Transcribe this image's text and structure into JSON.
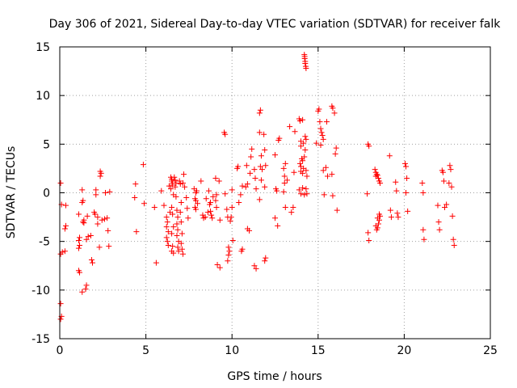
{
  "chart_data": {
    "type": "scatter",
    "title": "Day 306 of 2021, Sidereal Day-to-day VTEC variation (SDTVAR) for receiver falk",
    "xlabel": "GPS time / hours",
    "ylabel": "SDTVAR / TECUs",
    "xlim": [
      0,
      25
    ],
    "ylim": [
      -15,
      15
    ],
    "grid": true,
    "marker": "+",
    "marker_color": "#ff0000",
    "x_ticks": [
      0,
      5,
      10,
      15,
      20,
      25
    ],
    "x_tick_labels": [
      "0",
      "5",
      "10",
      "15",
      "20",
      "25"
    ],
    "y_ticks": [
      -15,
      -10,
      -5,
      0,
      5,
      10,
      15
    ],
    "y_tick_labels": [
      "-15",
      "-10",
      "-5",
      "0",
      "5",
      "10",
      "15"
    ],
    "series": [
      {
        "name": "SDTVAR",
        "points": [
          [
            0.05,
            1.0
          ],
          [
            0.1,
            -1.2
          ],
          [
            0.05,
            -6.3
          ],
          [
            0.15,
            -6.1
          ],
          [
            0.05,
            -11.4
          ],
          [
            0.1,
            -12.7
          ],
          [
            0.05,
            -13.0
          ],
          [
            0.35,
            -1.3
          ],
          [
            0.3,
            -3.7
          ],
          [
            0.35,
            -3.4
          ],
          [
            0.3,
            -6.0
          ],
          [
            1.1,
            -2.2
          ],
          [
            1.15,
            -4.6
          ],
          [
            1.1,
            -4.9
          ],
          [
            1.15,
            -5.4
          ],
          [
            1.1,
            -5.7
          ],
          [
            1.1,
            -8.0
          ],
          [
            1.15,
            -8.2
          ],
          [
            1.3,
            0.3
          ],
          [
            1.35,
            -0.8
          ],
          [
            1.3,
            -1.0
          ],
          [
            1.4,
            -2.8
          ],
          [
            1.35,
            -3.0
          ],
          [
            1.4,
            -3.1
          ],
          [
            1.3,
            -10.2
          ],
          [
            1.5,
            -9.9
          ],
          [
            1.55,
            -9.5
          ],
          [
            1.6,
            -2.4
          ],
          [
            1.65,
            -4.5
          ],
          [
            1.55,
            -4.8
          ],
          [
            1.8,
            -4.4
          ],
          [
            1.85,
            -6.9
          ],
          [
            1.9,
            -7.2
          ],
          [
            2.0,
            -2.0
          ],
          [
            2.05,
            -2.2
          ],
          [
            2.1,
            -0.2
          ],
          [
            2.1,
            0.3
          ],
          [
            2.2,
            -2.5
          ],
          [
            2.2,
            -3.2
          ],
          [
            2.3,
            -5.6
          ],
          [
            2.35,
            1.7
          ],
          [
            2.4,
            2.0
          ],
          [
            2.35,
            2.2
          ],
          [
            2.45,
            -2.8
          ],
          [
            2.6,
            -2.7
          ],
          [
            2.65,
            0.0
          ],
          [
            2.75,
            -2.6
          ],
          [
            2.8,
            -3.9
          ],
          [
            2.85,
            -5.5
          ],
          [
            2.9,
            0.1
          ],
          [
            4.35,
            -0.5
          ],
          [
            4.4,
            0.9
          ],
          [
            4.45,
            -4.0
          ],
          [
            4.85,
            2.9
          ],
          [
            4.9,
            -1.1
          ],
          [
            5.5,
            -1.5
          ],
          [
            5.6,
            -7.2
          ],
          [
            5.9,
            0.2
          ],
          [
            6.05,
            -1.3
          ],
          [
            6.2,
            -2.5
          ],
          [
            6.25,
            -3.0
          ],
          [
            6.2,
            -3.5
          ],
          [
            6.3,
            -4.0
          ],
          [
            6.2,
            -4.6
          ],
          [
            6.25,
            -5.0
          ],
          [
            6.3,
            -5.4
          ],
          [
            6.4,
            -2.0
          ],
          [
            6.35,
            0.7
          ],
          [
            6.45,
            0.4
          ],
          [
            6.5,
            1.4
          ],
          [
            6.55,
            1.0
          ],
          [
            6.45,
            1.6
          ],
          [
            6.5,
            1.2
          ],
          [
            6.55,
            0.8
          ],
          [
            6.6,
            -0.2
          ],
          [
            6.5,
            -1.5
          ],
          [
            6.55,
            -2.2
          ],
          [
            6.6,
            -3.5
          ],
          [
            6.5,
            -4.2
          ],
          [
            6.55,
            -5.5
          ],
          [
            6.5,
            -6.0
          ],
          [
            6.6,
            -6.2
          ],
          [
            6.65,
            1.6
          ],
          [
            6.7,
            1.3
          ],
          [
            6.75,
            1.0
          ],
          [
            6.7,
            0.6
          ],
          [
            6.75,
            -0.4
          ],
          [
            6.8,
            -1.8
          ],
          [
            6.85,
            -2.5
          ],
          [
            6.8,
            -3.2
          ],
          [
            6.85,
            -3.8
          ],
          [
            6.8,
            -4.4
          ],
          [
            6.9,
            -5.0
          ],
          [
            6.85,
            -5.6
          ],
          [
            6.9,
            -6.0
          ],
          [
            6.95,
            1.2
          ],
          [
            7.0,
            0.9
          ],
          [
            7.05,
            -1.0
          ],
          [
            7.0,
            -2.0
          ],
          [
            7.05,
            -3.0
          ],
          [
            7.1,
            -4.2
          ],
          [
            7.05,
            -5.2
          ],
          [
            7.1,
            -5.8
          ],
          [
            7.15,
            -6.3
          ],
          [
            7.15,
            1.0
          ],
          [
            7.2,
            1.9
          ],
          [
            7.25,
            0.6
          ],
          [
            7.35,
            -0.5
          ],
          [
            7.4,
            -1.6
          ],
          [
            7.45,
            -2.6
          ],
          [
            7.8,
            0.4
          ],
          [
            7.85,
            -0.6
          ],
          [
            7.9,
            0.0
          ],
          [
            7.9,
            -0.8
          ],
          [
            7.85,
            -1.5
          ],
          [
            7.9,
            -1.7
          ],
          [
            8.0,
            -1.1
          ],
          [
            7.95,
            0.2
          ],
          [
            8.2,
            1.2
          ],
          [
            8.3,
            -2.3
          ],
          [
            8.35,
            -2.6
          ],
          [
            8.45,
            -2.5
          ],
          [
            8.5,
            -0.6
          ],
          [
            8.6,
            -2.0
          ],
          [
            8.65,
            0.2
          ],
          [
            8.7,
            -1.2
          ],
          [
            8.75,
            -1.9
          ],
          [
            8.8,
            -2.3
          ],
          [
            8.85,
            -2.6
          ],
          [
            8.75,
            -1.0
          ],
          [
            8.9,
            -0.4
          ],
          [
            9.05,
            1.5
          ],
          [
            9.1,
            -0.2
          ],
          [
            9.05,
            -0.8
          ],
          [
            9.1,
            -1.5
          ],
          [
            9.15,
            -7.4
          ],
          [
            9.3,
            -7.7
          ],
          [
            9.25,
            1.2
          ],
          [
            9.3,
            -2.8
          ],
          [
            9.55,
            6.2
          ],
          [
            9.6,
            6.0
          ],
          [
            9.6,
            -0.1
          ],
          [
            9.7,
            -1.7
          ],
          [
            9.75,
            -2.5
          ],
          [
            9.8,
            -5.6
          ],
          [
            9.85,
            -6.0
          ],
          [
            9.8,
            -6.4
          ],
          [
            9.75,
            -7.0
          ],
          [
            9.9,
            -2.9
          ],
          [
            9.95,
            -2.5
          ],
          [
            10.0,
            -1.5
          ],
          [
            10.0,
            0.3
          ],
          [
            10.05,
            -4.9
          ],
          [
            10.3,
            2.5
          ],
          [
            10.35,
            2.7
          ],
          [
            10.4,
            -1.0
          ],
          [
            10.5,
            -0.2
          ],
          [
            10.6,
            0.7
          ],
          [
            10.55,
            -6.0
          ],
          [
            10.6,
            -5.8
          ],
          [
            10.8,
            0.6
          ],
          [
            10.85,
            2.8
          ],
          [
            10.9,
            0.9
          ],
          [
            10.9,
            -3.7
          ],
          [
            11.0,
            -3.9
          ],
          [
            11.05,
            2.0
          ],
          [
            11.1,
            3.7
          ],
          [
            11.15,
            4.5
          ],
          [
            11.3,
            2.4
          ],
          [
            11.35,
            1.5
          ],
          [
            11.4,
            0.4
          ],
          [
            11.3,
            -7.5
          ],
          [
            11.4,
            -7.8
          ],
          [
            11.6,
            8.2
          ],
          [
            11.65,
            8.5
          ],
          [
            11.6,
            6.2
          ],
          [
            11.7,
            3.8
          ],
          [
            11.65,
            2.7
          ],
          [
            11.7,
            1.3
          ],
          [
            11.6,
            -0.7
          ],
          [
            11.75,
            2.4
          ],
          [
            11.85,
            6.0
          ],
          [
            11.9,
            4.4
          ],
          [
            11.95,
            2.8
          ],
          [
            11.9,
            0.6
          ],
          [
            11.95,
            -6.7
          ],
          [
            11.9,
            -7.0
          ],
          [
            12.5,
            3.9
          ],
          [
            12.55,
            0.4
          ],
          [
            12.5,
            -2.6
          ],
          [
            12.6,
            0.2
          ],
          [
            12.65,
            -3.4
          ],
          [
            12.7,
            5.4
          ],
          [
            12.75,
            5.6
          ],
          [
            13.0,
            2.5
          ],
          [
            13.05,
            1.7
          ],
          [
            13.1,
            3.0
          ],
          [
            13.05,
            1.0
          ],
          [
            13.0,
            0.1
          ],
          [
            13.1,
            -1.5
          ],
          [
            13.2,
            1.3
          ],
          [
            13.35,
            6.8
          ],
          [
            13.45,
            -2.0
          ],
          [
            13.55,
            -1.5
          ],
          [
            13.6,
            2.1
          ],
          [
            13.65,
            6.3
          ],
          [
            13.9,
            7.6
          ],
          [
            13.95,
            7.4
          ],
          [
            14.0,
            5.3
          ],
          [
            14.0,
            4.8
          ],
          [
            13.95,
            3.0
          ],
          [
            14.0,
            2.7
          ],
          [
            14.05,
            3.5
          ],
          [
            14.0,
            2.2
          ],
          [
            13.9,
            0.3
          ],
          [
            14.0,
            -0.1
          ],
          [
            14.1,
            7.5
          ],
          [
            14.15,
            5.1
          ],
          [
            14.2,
            3.7
          ],
          [
            14.1,
            3.3
          ],
          [
            14.15,
            2.5
          ],
          [
            14.1,
            2.0
          ],
          [
            14.1,
            0.5
          ],
          [
            14.2,
            -0.2
          ],
          [
            14.2,
            14.2
          ],
          [
            14.22,
            14.0
          ],
          [
            14.22,
            13.8
          ],
          [
            14.25,
            13.5
          ],
          [
            14.25,
            13.3
          ],
          [
            14.28,
            13.0
          ],
          [
            14.3,
            12.8
          ],
          [
            14.25,
            5.8
          ],
          [
            14.3,
            5.5
          ],
          [
            14.25,
            4.4
          ],
          [
            14.3,
            2.3
          ],
          [
            14.35,
            1.7
          ],
          [
            14.3,
            0.4
          ],
          [
            14.35,
            -0.1
          ],
          [
            14.9,
            5.1
          ],
          [
            15.0,
            8.4
          ],
          [
            15.05,
            8.6
          ],
          [
            15.1,
            7.3
          ],
          [
            15.15,
            6.6
          ],
          [
            15.15,
            4.9
          ],
          [
            15.2,
            6.2
          ],
          [
            15.25,
            5.9
          ],
          [
            15.3,
            5.5
          ],
          [
            15.3,
            2.3
          ],
          [
            15.35,
            -0.2
          ],
          [
            15.45,
            2.6
          ],
          [
            15.5,
            7.3
          ],
          [
            15.55,
            1.7
          ],
          [
            15.8,
            8.9
          ],
          [
            15.85,
            8.7
          ],
          [
            15.8,
            1.9
          ],
          [
            15.85,
            -0.3
          ],
          [
            15.95,
            8.2
          ],
          [
            16.0,
            4.0
          ],
          [
            16.05,
            4.6
          ],
          [
            16.1,
            -1.8
          ],
          [
            17.9,
            5.0
          ],
          [
            17.95,
            4.8
          ],
          [
            17.85,
            -0.1
          ],
          [
            17.9,
            -4.1
          ],
          [
            17.95,
            -4.9
          ],
          [
            18.3,
            2.4
          ],
          [
            18.35,
            2.1
          ],
          [
            18.4,
            1.9
          ],
          [
            18.35,
            1.7
          ],
          [
            18.45,
            1.8
          ],
          [
            18.5,
            1.5
          ],
          [
            18.55,
            1.2
          ],
          [
            18.6,
            1.0
          ],
          [
            18.45,
            -3.6
          ],
          [
            18.5,
            -3.2
          ],
          [
            18.55,
            -2.8
          ],
          [
            18.6,
            -2.4
          ],
          [
            18.55,
            -2.2
          ],
          [
            18.4,
            -3.8
          ],
          [
            18.45,
            -2.6
          ],
          [
            18.35,
            -3.4
          ],
          [
            19.15,
            3.8
          ],
          [
            19.2,
            -1.8
          ],
          [
            19.25,
            -2.5
          ],
          [
            19.5,
            1.1
          ],
          [
            19.55,
            0.2
          ],
          [
            19.6,
            -2.1
          ],
          [
            19.65,
            -2.5
          ],
          [
            20.05,
            3.0
          ],
          [
            20.1,
            2.7
          ],
          [
            20.15,
            1.5
          ],
          [
            20.1,
            0.0
          ],
          [
            20.2,
            -1.9
          ],
          [
            21.05,
            1.0
          ],
          [
            21.1,
            0.0
          ],
          [
            21.1,
            -3.8
          ],
          [
            21.15,
            -4.8
          ],
          [
            21.95,
            -1.3
          ],
          [
            22.0,
            -3.0
          ],
          [
            22.05,
            -3.8
          ],
          [
            22.2,
            2.3
          ],
          [
            22.25,
            2.1
          ],
          [
            22.3,
            1.2
          ],
          [
            22.35,
            -1.5
          ],
          [
            22.45,
            -1.2
          ],
          [
            22.6,
            1.0
          ],
          [
            22.65,
            2.8
          ],
          [
            22.7,
            2.4
          ],
          [
            22.75,
            0.6
          ],
          [
            22.8,
            -2.4
          ],
          [
            22.85,
            -4.8
          ],
          [
            22.9,
            -5.4
          ]
        ]
      }
    ]
  }
}
